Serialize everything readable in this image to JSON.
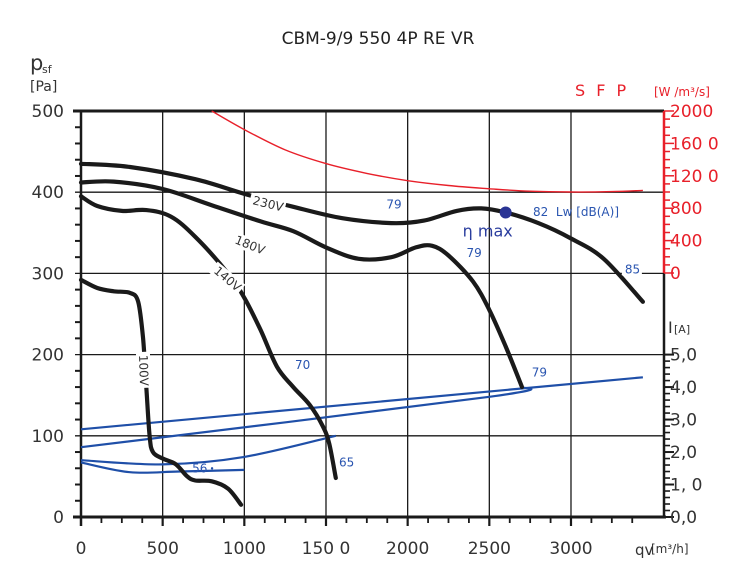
{
  "chart_data": {
    "type": "line",
    "title": "CBM-9/9 550 4P RE VR",
    "xlabel": "qv",
    "xlabel_unit": "[m³/h]",
    "ylabel": "p",
    "ylabel_sub": "sf",
    "ylabel_unit": "[Pa]",
    "y2label": "S F P",
    "y2label_unit": "[W /m³/s]",
    "y3label": "I",
    "y3label_unit": "[A]",
    "xlim": [
      0,
      3440
    ],
    "ylim": [
      0,
      500
    ],
    "y2lim": [
      0,
      2000
    ],
    "y3lim": [
      0,
      5.0
    ],
    "grid": true,
    "x_ticks": [
      {
        "value": 0,
        "label": "0"
      },
      {
        "value": 500,
        "label": "500"
      },
      {
        "value": 1000,
        "label": "1000"
      },
      {
        "value": 1500,
        "label": "150 0"
      },
      {
        "value": 2000,
        "label": "2000"
      },
      {
        "value": 2500,
        "label": "2500"
      },
      {
        "value": 3000,
        "label": "3000"
      }
    ],
    "y_ticks": [
      {
        "value": 0,
        "label": "0"
      },
      {
        "value": 100,
        "label": "100"
      },
      {
        "value": 200,
        "label": "200"
      },
      {
        "value": 300,
        "label": "300"
      },
      {
        "value": 400,
        "label": "400"
      },
      {
        "value": 500,
        "label": "500"
      }
    ],
    "y2_ticks": [
      {
        "value": 0,
        "label": "0"
      },
      {
        "value": 400,
        "label": "400"
      },
      {
        "value": 800,
        "label": "800"
      },
      {
        "value": 1200,
        "label": "120 0"
      },
      {
        "value": 1600,
        "label": "160 0"
      },
      {
        "value": 2000,
        "label": "2000"
      }
    ],
    "y3_ticks": [
      {
        "value": 0,
        "label": "0,0"
      },
      {
        "value": 1,
        "label": "1, 0"
      },
      {
        "value": 2,
        "label": "2,0"
      },
      {
        "value": 3,
        "label": "3,0"
      },
      {
        "value": 4,
        "label": "4,0"
      },
      {
        "value": 5,
        "label": "5,0"
      }
    ],
    "pressure_series": [
      {
        "name": "230V",
        "label": "230V",
        "color": "#1a1a1a",
        "x": [
          0,
          300,
          700,
          1000,
          1300,
          1600,
          1900,
          2100,
          2300,
          2450,
          2600,
          2800,
          3000,
          3200,
          3440
        ],
        "y": [
          435,
          431,
          416,
          398,
          382,
          368,
          362,
          365,
          377,
          380,
          375,
          362,
          343,
          318,
          265
        ]
      },
      {
        "name": "180V",
        "label": "180V",
        "color": "#1a1a1a",
        "x": [
          0,
          200,
          500,
          800,
          1100,
          1300,
          1500,
          1700,
          1900,
          2050,
          2150,
          2250,
          2400,
          2500,
          2600,
          2700
        ],
        "y": [
          412,
          413,
          404,
          384,
          364,
          352,
          332,
          318,
          320,
          332,
          334,
          322,
          290,
          255,
          210,
          160
        ]
      },
      {
        "name": "140V",
        "label": "140V",
        "color": "#1a1a1a",
        "x": [
          0,
          100,
          250,
          400,
          550,
          700,
          900,
          1000,
          1100,
          1200,
          1300,
          1400,
          1480,
          1520,
          1560
        ],
        "y": [
          395,
          383,
          377,
          378,
          370,
          345,
          300,
          270,
          230,
          185,
          160,
          138,
          112,
          90,
          48
        ]
      },
      {
        "name": "100V",
        "label": "100V",
        "color": "#1a1a1a",
        "x": [
          0,
          100,
          200,
          300,
          350,
          380,
          400,
          420,
          440,
          500,
          580,
          650,
          700,
          800,
          900,
          980
        ],
        "y": [
          292,
          282,
          278,
          276,
          265,
          220,
          160,
          100,
          80,
          72,
          65,
          50,
          45,
          44,
          35,
          15
        ]
      }
    ],
    "sfp_series": {
      "name": "SFP",
      "color": "#e8202a",
      "x": [
        800,
        1000,
        1250,
        1500,
        1750,
        2000,
        2250,
        2500,
        2750,
        3000,
        3250,
        3440
      ],
      "y": [
        2000,
        1770,
        1520,
        1350,
        1230,
        1140,
        1080,
        1040,
        1010,
        1000,
        1005,
        1020
      ]
    },
    "current_series": [
      {
        "name": "I 230V",
        "color": "#1f4fa8",
        "x": [
          0,
          3440
        ],
        "y": [
          2.7,
          4.3
        ]
      },
      {
        "name": "I 180V",
        "color": "#1f4fa8",
        "x": [
          0,
          2500,
          2700
        ],
        "y": [
          2.15,
          3.7,
          4.0
        ]
      },
      {
        "name": "I 140V",
        "color": "#1f4fa8",
        "x": [
          0,
          500,
          1000,
          1560
        ],
        "y": [
          1.75,
          1.62,
          1.85,
          2.5
        ]
      },
      {
        "name": "I 100V",
        "color": "#1f4fa8",
        "x": [
          0,
          300,
          600,
          1000
        ],
        "y": [
          1.68,
          1.38,
          1.4,
          1.45
        ]
      }
    ],
    "sound_labels": [
      {
        "text": "79",
        "x": 1870,
        "y": 380
      },
      {
        "text": "79",
        "x": 2360,
        "y": 320
      },
      {
        "text": "79",
        "x": 2760,
        "y": 173
      },
      {
        "text": "70",
        "x": 1310,
        "y": 182
      },
      {
        "text": "65",
        "x": 1580,
        "y": 62
      },
      {
        "text": "56",
        "x": 680,
        "y": 55
      },
      {
        "text": "85",
        "x": 3330,
        "y": 300
      }
    ],
    "eta_max": {
      "label": "η max",
      "x": 2600,
      "y": 375
    },
    "lw_label": "82  Lw [dB(A)]",
    "colors": {
      "pressure": "#1a1a1a",
      "sfp": "#e8202a",
      "current": "#1f4fa8",
      "eta": "#2a3494",
      "grid": "#1a1a1a"
    }
  }
}
